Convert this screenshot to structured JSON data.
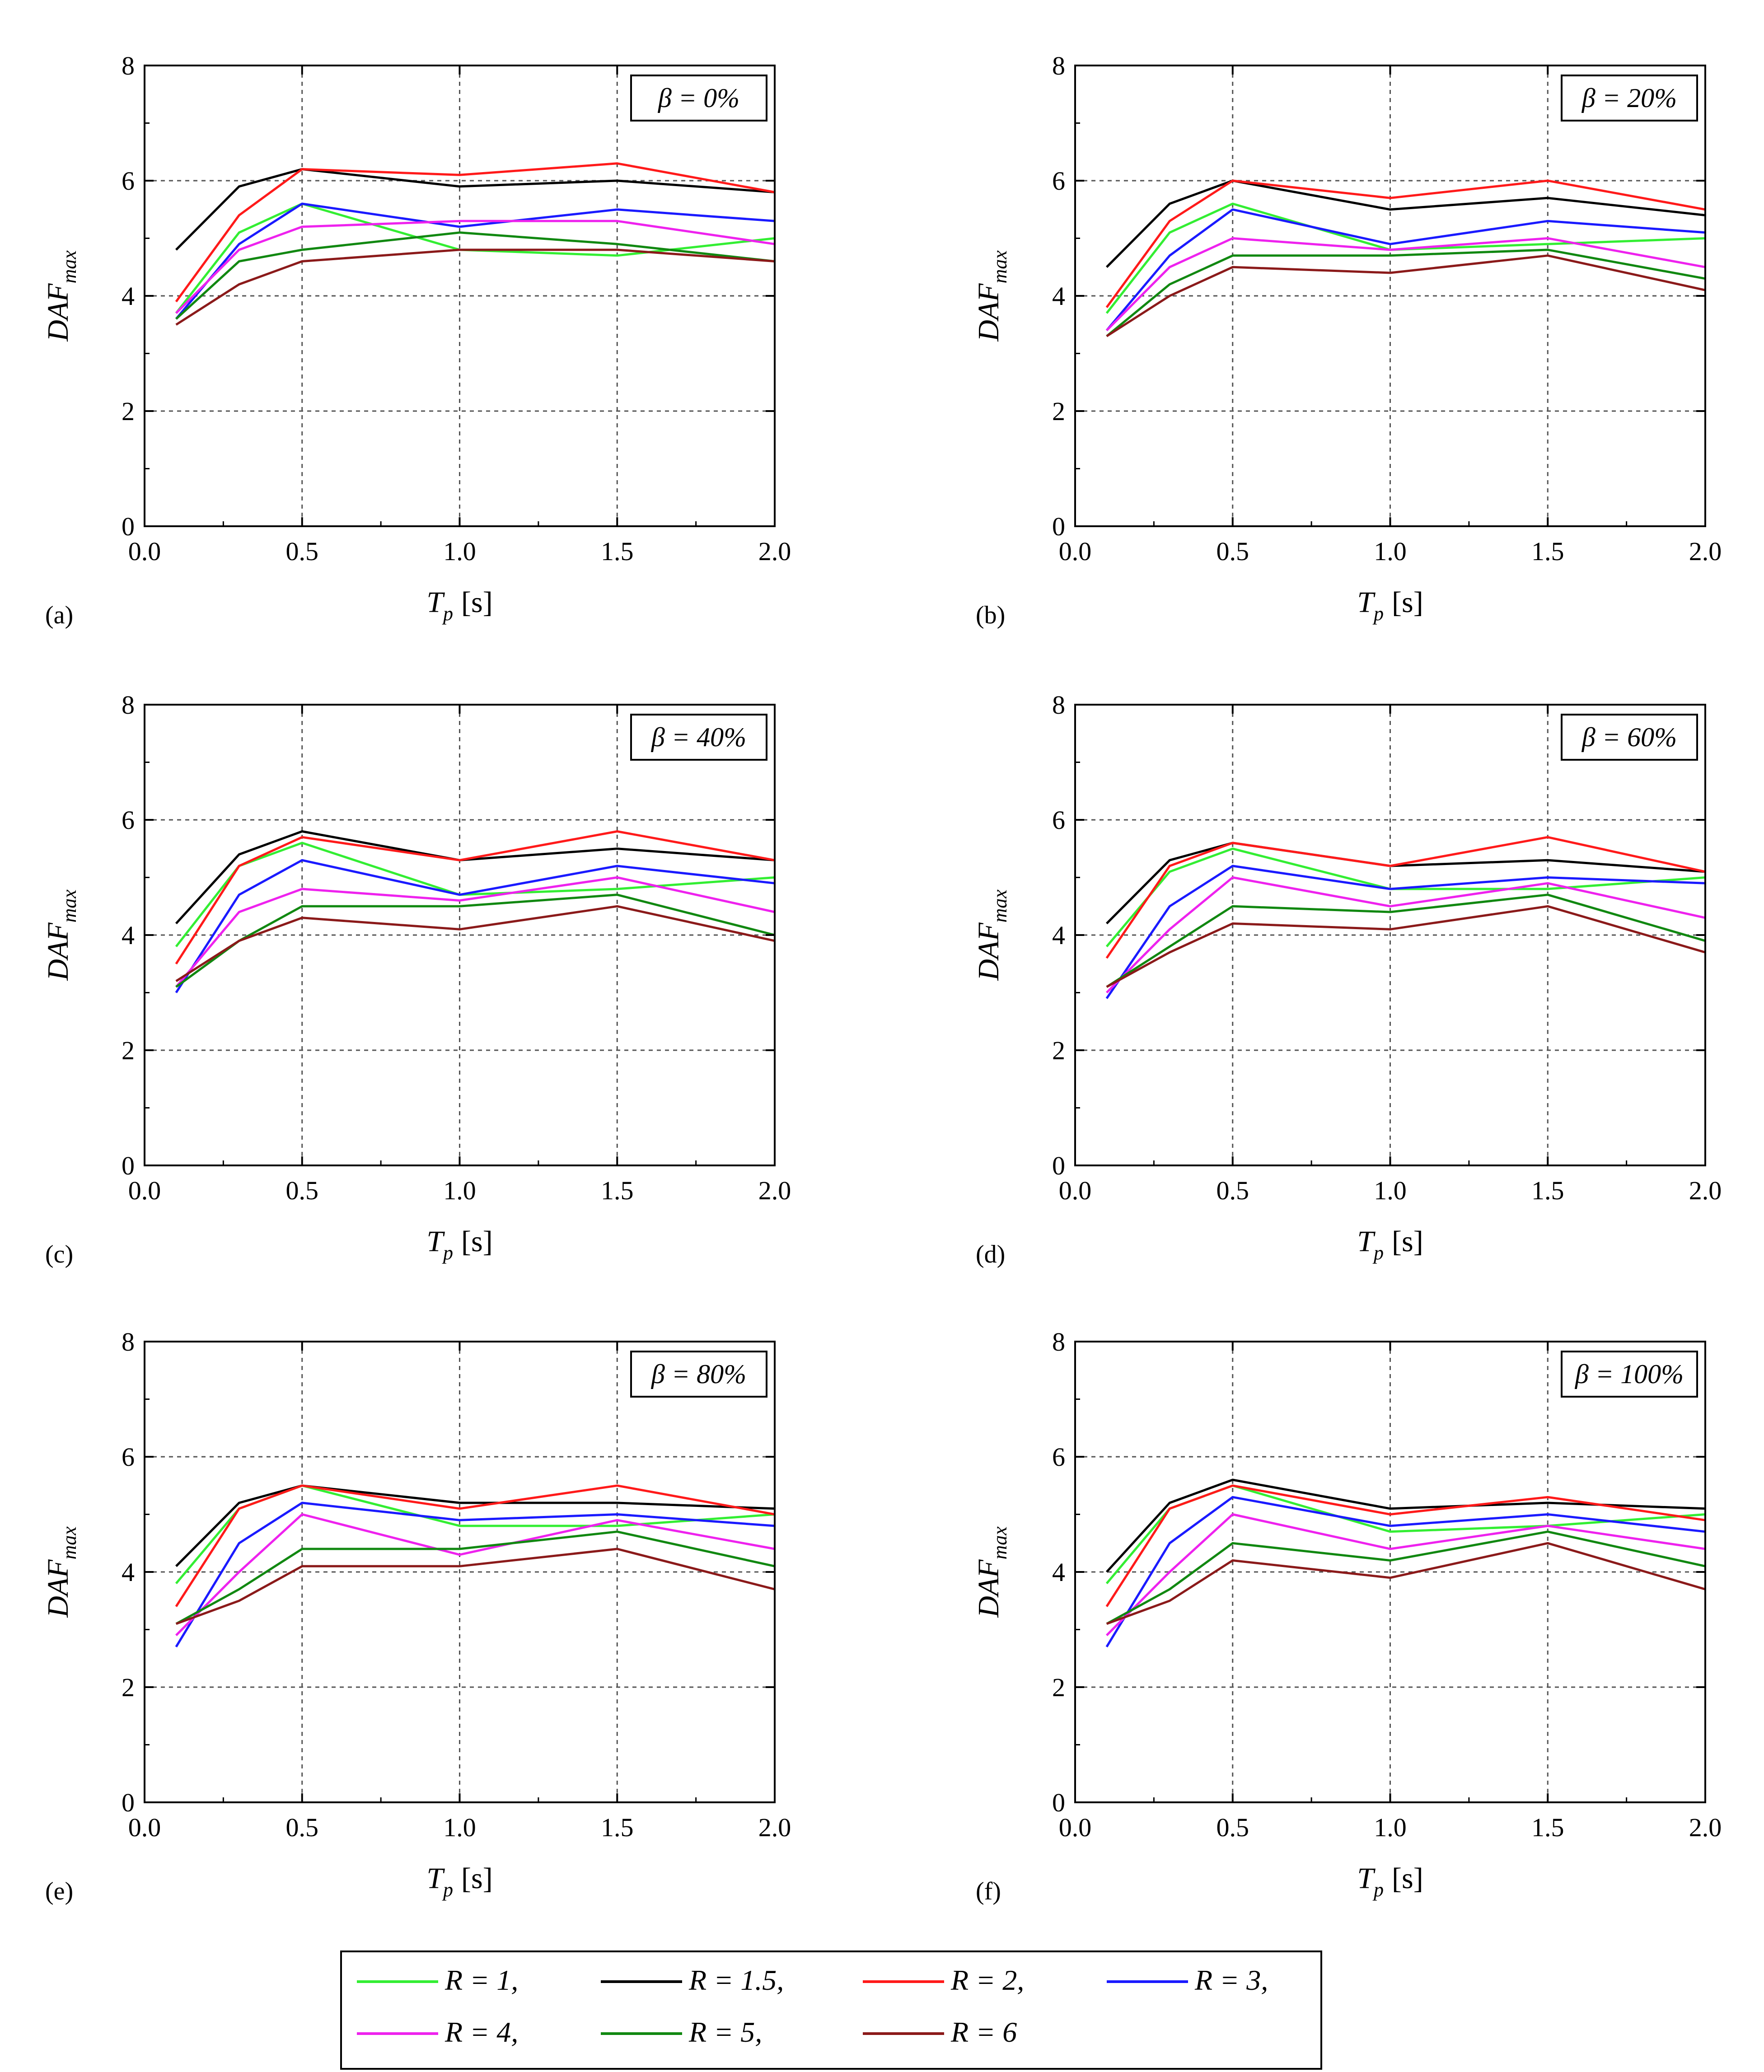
{
  "x_label": {
    "symbol": "T",
    "sub": "p",
    "unit": "[s]"
  },
  "y_label": {
    "main": "DAF",
    "sub": "max"
  },
  "x_ticks": [
    "0.0",
    "0.5",
    "1.0",
    "1.5",
    "2.0"
  ],
  "y_ticks": [
    "0",
    "2",
    "4",
    "6",
    "8"
  ],
  "legend": [
    {
      "name": "R = 1,",
      "color": "#33ee33"
    },
    {
      "name": "R = 1.5,",
      "color": "#000000"
    },
    {
      "name": "R = 2,",
      "color": "#ff1a1a"
    },
    {
      "name": "R = 3,",
      "color": "#1a1aff"
    },
    {
      "name": "R = 4,",
      "color": "#ee22ee"
    },
    {
      "name": "R = 5,",
      "color": "#118811"
    },
    {
      "name": "R = 6",
      "color": "#8b1a1a"
    }
  ],
  "chart_data": [
    {
      "type": "line",
      "panel": "(a)",
      "beta": "β = 0%",
      "x": [
        0.1,
        0.3,
        0.5,
        1.0,
        1.5,
        2.0
      ],
      "xlim": [
        0,
        2
      ],
      "ylim": [
        0,
        8
      ],
      "grid": true,
      "series": [
        {
          "name": "R = 1",
          "values": [
            3.7,
            5.1,
            5.6,
            4.8,
            4.7,
            5.0
          ]
        },
        {
          "name": "R = 1.5",
          "values": [
            4.8,
            5.9,
            6.2,
            5.9,
            6.0,
            5.8
          ]
        },
        {
          "name": "R = 2",
          "values": [
            3.9,
            5.4,
            6.2,
            6.1,
            6.3,
            5.8
          ]
        },
        {
          "name": "R = 3",
          "values": [
            3.6,
            4.9,
            5.6,
            5.2,
            5.5,
            5.3
          ]
        },
        {
          "name": "R = 4",
          "values": [
            3.7,
            4.8,
            5.2,
            5.3,
            5.3,
            4.9
          ]
        },
        {
          "name": "R = 5",
          "values": [
            3.6,
            4.6,
            4.8,
            5.1,
            4.9,
            4.6
          ]
        },
        {
          "name": "R = 6",
          "values": [
            3.5,
            4.2,
            4.6,
            4.8,
            4.8,
            4.6
          ]
        }
      ]
    },
    {
      "type": "line",
      "panel": "(b)",
      "beta": "β = 20%",
      "x": [
        0.1,
        0.3,
        0.5,
        1.0,
        1.5,
        2.0
      ],
      "xlim": [
        0,
        2
      ],
      "ylim": [
        0,
        8
      ],
      "grid": true,
      "series": [
        {
          "name": "R = 1",
          "values": [
            3.7,
            5.1,
            5.6,
            4.8,
            4.9,
            5.0
          ]
        },
        {
          "name": "R = 1.5",
          "values": [
            4.5,
            5.6,
            6.0,
            5.5,
            5.7,
            5.4
          ]
        },
        {
          "name": "R = 2",
          "values": [
            3.8,
            5.3,
            6.0,
            5.7,
            6.0,
            5.5
          ]
        },
        {
          "name": "R = 3",
          "values": [
            3.4,
            4.7,
            5.5,
            4.9,
            5.3,
            5.1
          ]
        },
        {
          "name": "R = 4",
          "values": [
            3.4,
            4.5,
            5.0,
            4.8,
            5.0,
            4.5
          ]
        },
        {
          "name": "R = 5",
          "values": [
            3.3,
            4.2,
            4.7,
            4.7,
            4.8,
            4.3
          ]
        },
        {
          "name": "R = 6",
          "values": [
            3.3,
            4.0,
            4.5,
            4.4,
            4.7,
            4.1
          ]
        }
      ]
    },
    {
      "type": "line",
      "panel": "(c)",
      "beta": "β = 40%",
      "x": [
        0.1,
        0.3,
        0.5,
        1.0,
        1.5,
        2.0
      ],
      "xlim": [
        0,
        2
      ],
      "ylim": [
        0,
        8
      ],
      "grid": true,
      "series": [
        {
          "name": "R = 1",
          "values": [
            3.8,
            5.2,
            5.6,
            4.7,
            4.8,
            5.0
          ]
        },
        {
          "name": "R = 1.5",
          "values": [
            4.2,
            5.4,
            5.8,
            5.3,
            5.5,
            5.3
          ]
        },
        {
          "name": "R = 2",
          "values": [
            3.5,
            5.2,
            5.7,
            5.3,
            5.8,
            5.3
          ]
        },
        {
          "name": "R = 3",
          "values": [
            3.0,
            4.7,
            5.3,
            4.7,
            5.2,
            4.9
          ]
        },
        {
          "name": "R = 4",
          "values": [
            3.1,
            4.4,
            4.8,
            4.6,
            5.0,
            4.4
          ]
        },
        {
          "name": "R = 5",
          "values": [
            3.1,
            3.9,
            4.5,
            4.5,
            4.7,
            4.0
          ]
        },
        {
          "name": "R = 6",
          "values": [
            3.2,
            3.9,
            4.3,
            4.1,
            4.5,
            3.9
          ]
        }
      ]
    },
    {
      "type": "line",
      "panel": "(d)",
      "beta": "β = 60%",
      "x": [
        0.1,
        0.3,
        0.5,
        1.0,
        1.5,
        2.0
      ],
      "xlim": [
        0,
        2
      ],
      "ylim": [
        0,
        8
      ],
      "grid": true,
      "series": [
        {
          "name": "R = 1",
          "values": [
            3.8,
            5.1,
            5.5,
            4.8,
            4.8,
            5.0
          ]
        },
        {
          "name": "R = 1.5",
          "values": [
            4.2,
            5.3,
            5.6,
            5.2,
            5.3,
            5.1
          ]
        },
        {
          "name": "R = 2",
          "values": [
            3.6,
            5.2,
            5.6,
            5.2,
            5.7,
            5.1
          ]
        },
        {
          "name": "R = 3",
          "values": [
            2.9,
            4.5,
            5.2,
            4.8,
            5.0,
            4.9
          ]
        },
        {
          "name": "R = 4",
          "values": [
            3.0,
            4.1,
            5.0,
            4.5,
            4.9,
            4.3
          ]
        },
        {
          "name": "R = 5",
          "values": [
            3.1,
            3.8,
            4.5,
            4.4,
            4.7,
            3.9
          ]
        },
        {
          "name": "R = 6",
          "values": [
            3.1,
            3.7,
            4.2,
            4.1,
            4.5,
            3.7
          ]
        }
      ]
    },
    {
      "type": "line",
      "panel": "(e)",
      "beta": "β = 80%",
      "x": [
        0.1,
        0.3,
        0.5,
        1.0,
        1.5,
        2.0
      ],
      "xlim": [
        0,
        2
      ],
      "ylim": [
        0,
        8
      ],
      "grid": true,
      "series": [
        {
          "name": "R = 1",
          "values": [
            3.8,
            5.1,
            5.5,
            4.8,
            4.8,
            5.0
          ]
        },
        {
          "name": "R = 1.5",
          "values": [
            4.1,
            5.2,
            5.5,
            5.2,
            5.2,
            5.1
          ]
        },
        {
          "name": "R = 2",
          "values": [
            3.4,
            5.1,
            5.5,
            5.1,
            5.5,
            5.0
          ]
        },
        {
          "name": "R = 3",
          "values": [
            2.7,
            4.5,
            5.2,
            4.9,
            5.0,
            4.8
          ]
        },
        {
          "name": "R = 4",
          "values": [
            2.9,
            4.0,
            5.0,
            4.3,
            4.9,
            4.4
          ]
        },
        {
          "name": "R = 5",
          "values": [
            3.1,
            3.7,
            4.4,
            4.4,
            4.7,
            4.1
          ]
        },
        {
          "name": "R = 6",
          "values": [
            3.1,
            3.5,
            4.1,
            4.1,
            4.4,
            3.7
          ]
        }
      ]
    },
    {
      "type": "line",
      "panel": "(f)",
      "beta": "β = 100%",
      "x": [
        0.1,
        0.3,
        0.5,
        1.0,
        1.5,
        2.0
      ],
      "xlim": [
        0,
        2
      ],
      "ylim": [
        0,
        8
      ],
      "grid": true,
      "series": [
        {
          "name": "R = 1",
          "values": [
            3.8,
            5.1,
            5.5,
            4.7,
            4.8,
            5.0
          ]
        },
        {
          "name": "R = 1.5",
          "values": [
            4.0,
            5.2,
            5.6,
            5.1,
            5.2,
            5.1
          ]
        },
        {
          "name": "R = 2",
          "values": [
            3.4,
            5.1,
            5.5,
            5.0,
            5.3,
            4.9
          ]
        },
        {
          "name": "R = 3",
          "values": [
            2.7,
            4.5,
            5.3,
            4.8,
            5.0,
            4.7
          ]
        },
        {
          "name": "R = 4",
          "values": [
            2.9,
            4.0,
            5.0,
            4.4,
            4.8,
            4.4
          ]
        },
        {
          "name": "R = 5",
          "values": [
            3.1,
            3.7,
            4.5,
            4.2,
            4.7,
            4.1
          ]
        },
        {
          "name": "R = 6",
          "values": [
            3.1,
            3.5,
            4.2,
            3.9,
            4.5,
            3.7
          ]
        }
      ]
    }
  ]
}
